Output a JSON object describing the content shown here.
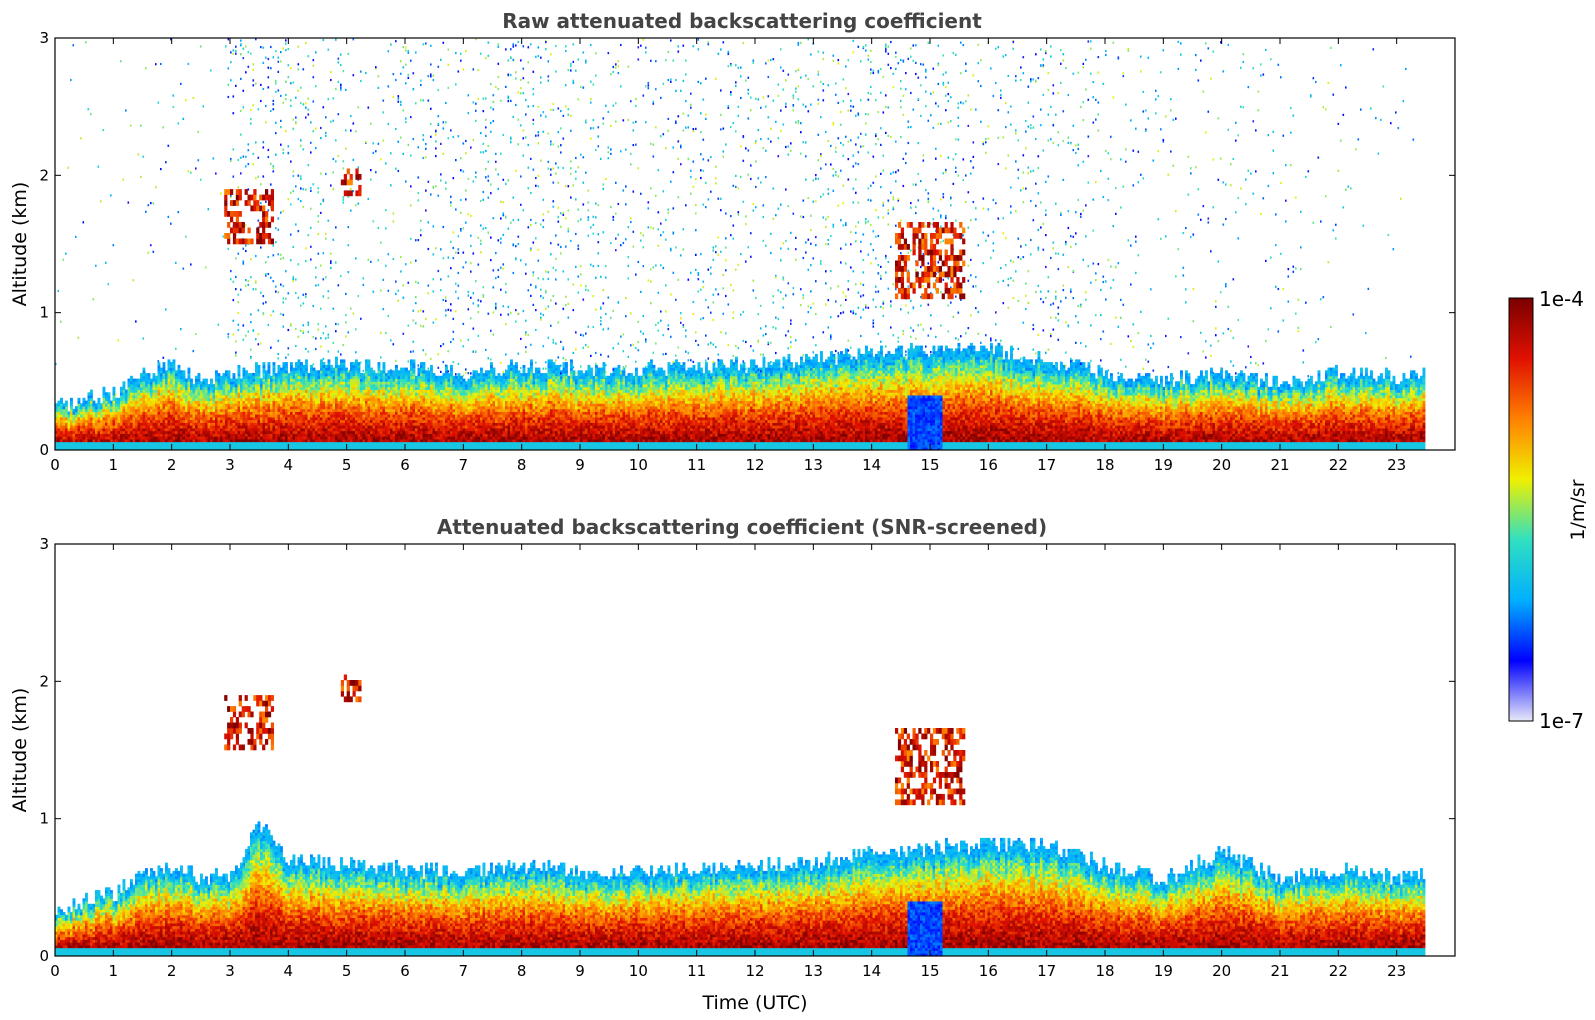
{
  "chart_data": [
    {
      "type": "heatmap",
      "id": "raw",
      "title": "Raw attenuated backscattering coefficient",
      "xlabel": "",
      "ylabel": "Altitude (km)",
      "xlim": [
        0,
        24
      ],
      "ylim": [
        0,
        3
      ],
      "xticks": [
        "0",
        "1",
        "2",
        "3",
        "4",
        "5",
        "6",
        "7",
        "8",
        "9",
        "10",
        "11",
        "12",
        "13",
        "14",
        "15",
        "16",
        "17",
        "18",
        "19",
        "20",
        "21",
        "22",
        "23"
      ],
      "yticks": [
        "0",
        "1",
        "2",
        "3"
      ],
      "data_end_hour": 23.5,
      "boundary_layer_top_km": [
        [
          0,
          0.32
        ],
        [
          1,
          0.4
        ],
        [
          1.5,
          0.55
        ],
        [
          2,
          0.62
        ],
        [
          2.5,
          0.5
        ],
        [
          3,
          0.55
        ],
        [
          4,
          0.6
        ],
        [
          5,
          0.62
        ],
        [
          6,
          0.6
        ],
        [
          7,
          0.55
        ],
        [
          8,
          0.6
        ],
        [
          9,
          0.58
        ],
        [
          10,
          0.58
        ],
        [
          11,
          0.6
        ],
        [
          12,
          0.62
        ],
        [
          13,
          0.65
        ],
        [
          14,
          0.7
        ],
        [
          15,
          0.72
        ],
        [
          16,
          0.72
        ],
        [
          17,
          0.65
        ],
        [
          18,
          0.55
        ],
        [
          19,
          0.5
        ],
        [
          20,
          0.55
        ],
        [
          21,
          0.48
        ],
        [
          22,
          0.55
        ],
        [
          23,
          0.52
        ],
        [
          23.5,
          0.55
        ]
      ],
      "noise_intensity": [
        [
          0,
          0.08
        ],
        [
          1,
          0.1
        ],
        [
          2,
          0.2
        ],
        [
          2.9,
          0.1
        ],
        [
          3,
          0.85
        ],
        [
          4,
          0.8
        ],
        [
          5,
          0.55
        ],
        [
          5.3,
          0.25
        ],
        [
          6,
          0.6
        ],
        [
          7,
          0.7
        ],
        [
          8,
          0.75
        ],
        [
          8.5,
          0.85
        ],
        [
          9,
          0.7
        ],
        [
          10,
          0.5
        ],
        [
          11,
          0.65
        ],
        [
          12,
          0.55
        ],
        [
          13,
          0.6
        ],
        [
          14,
          0.8
        ],
        [
          15,
          0.75
        ],
        [
          16,
          0.4
        ],
        [
          17,
          0.7
        ],
        [
          18,
          0.4
        ],
        [
          19,
          0.25
        ],
        [
          20,
          0.3
        ],
        [
          21,
          0.25
        ],
        [
          22,
          0.15
        ],
        [
          23,
          0.1
        ],
        [
          23.5,
          0.05
        ]
      ],
      "elevated_layers": [
        {
          "t0": 2.9,
          "t1": 3.7,
          "z0": 1.5,
          "z1": 1.9
        },
        {
          "t0": 4.9,
          "t1": 5.2,
          "z0": 1.85,
          "z1": 2.05
        },
        {
          "t0": 14.4,
          "t1": 15.6,
          "z0": 1.1,
          "z1": 1.65
        }
      ],
      "colorbar": {
        "label": "1/m/sr",
        "min_label": "1e-7",
        "max_label": "1e-4"
      }
    },
    {
      "type": "heatmap",
      "id": "screened",
      "title": "Attenuated backscattering coefficient (SNR-screened)",
      "xlabel": "Time (UTC)",
      "ylabel": "Altitude (km)",
      "xlim": [
        0,
        24
      ],
      "ylim": [
        0,
        3
      ],
      "xticks": [
        "0",
        "1",
        "2",
        "3",
        "4",
        "5",
        "6",
        "7",
        "8",
        "9",
        "10",
        "11",
        "12",
        "13",
        "14",
        "15",
        "16",
        "17",
        "18",
        "19",
        "20",
        "21",
        "22",
        "23"
      ],
      "yticks": [
        "0",
        "1",
        "2",
        "3"
      ],
      "data_end_hour": 23.5,
      "boundary_layer_top_km": [
        [
          0,
          0.32
        ],
        [
          1,
          0.45
        ],
        [
          1.5,
          0.6
        ],
        [
          2,
          0.65
        ],
        [
          2.5,
          0.55
        ],
        [
          3,
          0.6
        ],
        [
          3.5,
          0.95
        ],
        [
          4,
          0.7
        ],
        [
          5,
          0.65
        ],
        [
          6,
          0.62
        ],
        [
          7,
          0.6
        ],
        [
          8,
          0.65
        ],
        [
          9,
          0.6
        ],
        [
          10,
          0.6
        ],
        [
          11,
          0.62
        ],
        [
          12,
          0.65
        ],
        [
          13,
          0.68
        ],
        [
          14,
          0.75
        ],
        [
          15,
          0.78
        ],
        [
          16,
          0.8
        ],
        [
          17,
          0.8
        ],
        [
          18,
          0.65
        ],
        [
          19,
          0.55
        ],
        [
          20,
          0.75
        ],
        [
          21,
          0.55
        ],
        [
          22,
          0.62
        ],
        [
          23,
          0.55
        ],
        [
          23.5,
          0.62
        ]
      ],
      "elevated_layers": [
        {
          "t0": 2.9,
          "t1": 3.7,
          "z0": 1.5,
          "z1": 1.9
        },
        {
          "t0": 4.9,
          "t1": 5.2,
          "z0": 1.85,
          "z1": 2.05
        },
        {
          "t0": 14.4,
          "t1": 15.6,
          "z0": 1.1,
          "z1": 1.65
        }
      ]
    }
  ],
  "colors": {
    "colormap": [
      "#e8e8f8",
      "#0000ff",
      "#00b0ff",
      "#30e0c0",
      "#f0f000",
      "#ff8000",
      "#e01000",
      "#7a0000"
    ],
    "background": "#ffffff"
  }
}
